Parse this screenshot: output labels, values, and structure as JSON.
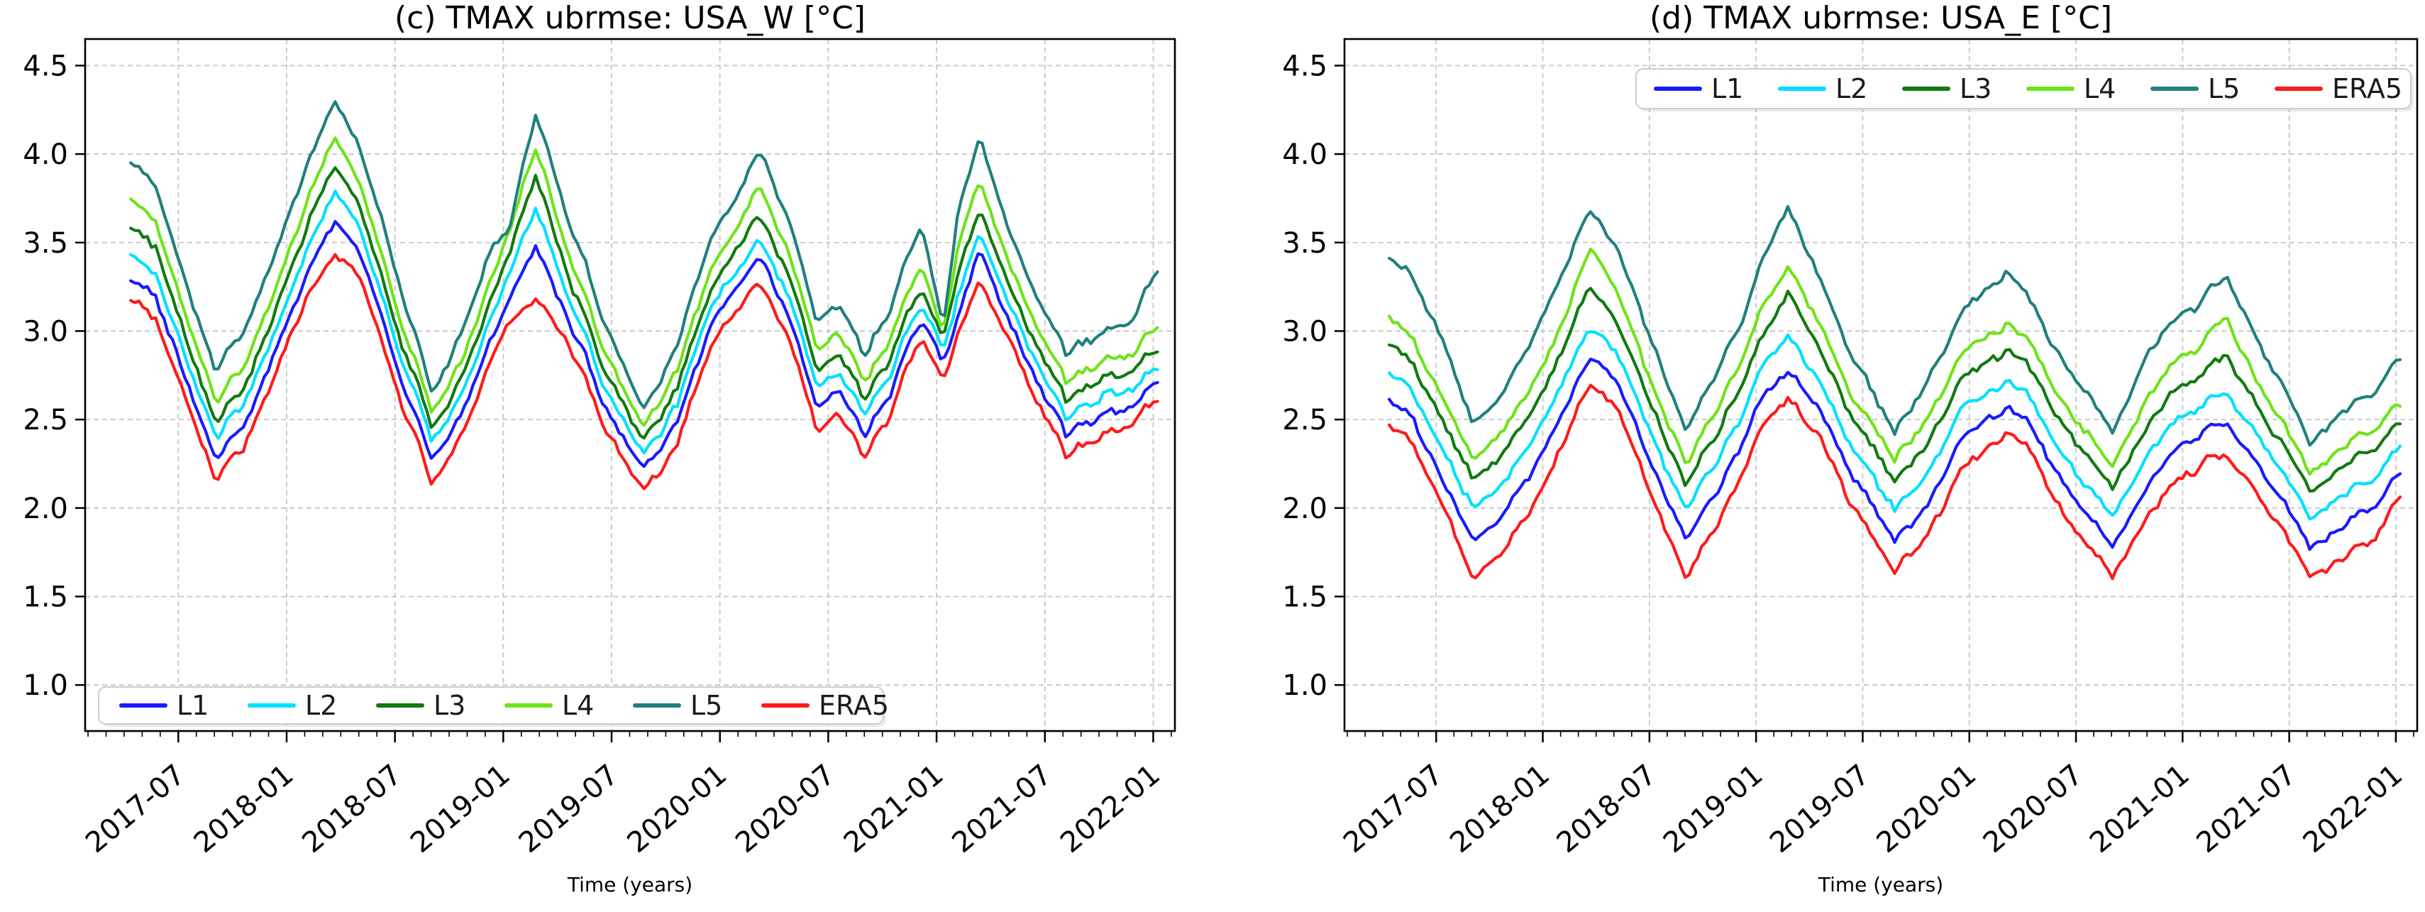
{
  "figure": {
    "background": "#ffffff",
    "axis_color": "#000000",
    "grid_color": "#c6c6c6",
    "tick_label_color": "#000000"
  },
  "chart_data": [
    {
      "id": "c",
      "type": "line",
      "title": "(c) TMAX ubrmse: USA_W [°C]",
      "xlabel": "Time (years)",
      "ylabel": "",
      "legend_position": "bottom-left",
      "grid": true,
      "ylim": [
        0.74,
        4.65
      ],
      "xlim_years": [
        2017.07,
        2022.1
      ],
      "yticks": [
        1.0,
        1.5,
        2.0,
        2.5,
        3.0,
        3.5,
        4.0,
        4.5
      ],
      "ytick_labels": [
        "1.0",
        "1.5",
        "2.0",
        "2.5",
        "3.0",
        "3.5",
        "4.0",
        "4.5"
      ],
      "xticks_years": [
        2017.5,
        2018.0,
        2018.5,
        2019.0,
        2019.5,
        2020.0,
        2020.5,
        2021.0,
        2021.5,
        2022.0
      ],
      "xtick_labels": [
        "2017-07",
        "2018-01",
        "2018-07",
        "2019-01",
        "2019-07",
        "2020-01",
        "2020-07",
        "2021-01",
        "2021-07",
        "2022-01"
      ],
      "noise_amp": 0.042,
      "x_years": [
        2017.28,
        2017.4,
        2017.55,
        2017.67,
        2017.8,
        2017.95,
        2018.1,
        2018.22,
        2018.35,
        2018.5,
        2018.67,
        2018.8,
        2018.95,
        2019.02,
        2019.15,
        2019.3,
        2019.45,
        2019.65,
        2019.8,
        2019.95,
        2020.05,
        2020.18,
        2020.3,
        2020.45,
        2020.55,
        2020.67,
        2020.8,
        2020.93,
        2021.03,
        2021.1,
        2021.2,
        2021.35,
        2021.6,
        2021.75,
        2021.9,
        2022.02
      ],
      "series": [
        {
          "name": "L1",
          "color": "#1a1aff",
          "values": [
            3.33,
            3.17,
            2.67,
            2.3,
            2.47,
            2.9,
            3.33,
            3.62,
            3.42,
            2.83,
            2.26,
            2.5,
            2.97,
            3.17,
            3.48,
            3.08,
            2.62,
            2.22,
            2.47,
            3.0,
            3.2,
            3.4,
            3.17,
            2.55,
            2.67,
            2.4,
            2.7,
            3.08,
            2.83,
            3.1,
            3.42,
            3.0,
            2.4,
            2.52,
            2.58,
            2.72
          ]
        },
        {
          "name": "L2",
          "color": "#00e0ff",
          "values": [
            3.46,
            3.3,
            2.79,
            2.42,
            2.59,
            3.02,
            3.47,
            3.8,
            3.55,
            2.95,
            2.37,
            2.61,
            3.09,
            3.3,
            3.7,
            3.2,
            2.73,
            2.3,
            2.58,
            3.1,
            3.3,
            3.5,
            3.28,
            2.66,
            2.78,
            2.51,
            2.81,
            3.17,
            2.9,
            3.22,
            3.52,
            3.1,
            2.5,
            2.62,
            2.68,
            2.8
          ]
        },
        {
          "name": "L3",
          "color": "#117a11",
          "values": [
            3.62,
            3.45,
            2.9,
            2.5,
            2.68,
            3.13,
            3.6,
            3.95,
            3.67,
            3.05,
            2.44,
            2.7,
            3.2,
            3.42,
            3.88,
            3.32,
            2.83,
            2.38,
            2.67,
            3.2,
            3.42,
            3.64,
            3.4,
            2.76,
            2.88,
            2.6,
            2.9,
            3.26,
            2.96,
            3.35,
            3.66,
            3.2,
            2.6,
            2.72,
            2.78,
            2.9
          ]
        },
        {
          "name": "L4",
          "color": "#6fe319",
          "values": [
            3.77,
            3.6,
            3.02,
            2.62,
            2.8,
            3.26,
            3.74,
            4.1,
            3.8,
            3.16,
            2.53,
            2.8,
            3.31,
            3.55,
            4.03,
            3.45,
            2.94,
            2.46,
            2.77,
            3.31,
            3.53,
            3.8,
            3.53,
            2.87,
            3.0,
            2.7,
            3.01,
            3.38,
            3.0,
            3.5,
            3.82,
            3.32,
            2.7,
            2.82,
            2.88,
            3.03
          ]
        },
        {
          "name": "L5",
          "color": "#20807c",
          "values": [
            3.98,
            3.8,
            3.2,
            2.8,
            3.0,
            3.46,
            3.95,
            4.3,
            4.0,
            3.35,
            2.64,
            2.95,
            3.48,
            3.56,
            4.22,
            3.65,
            3.1,
            2.55,
            2.9,
            3.5,
            3.7,
            4.0,
            3.72,
            3.03,
            3.16,
            2.85,
            3.18,
            3.62,
            3.04,
            3.7,
            4.06,
            3.5,
            2.86,
            2.98,
            3.06,
            3.36
          ]
        },
        {
          "name": "ERA5",
          "color": "#ff1a1a",
          "values": [
            3.22,
            3.05,
            2.55,
            2.18,
            2.35,
            2.78,
            3.2,
            3.44,
            3.28,
            2.7,
            2.13,
            2.38,
            2.85,
            3.05,
            3.18,
            2.95,
            2.5,
            2.1,
            2.35,
            2.88,
            3.08,
            3.26,
            3.05,
            2.42,
            2.55,
            2.27,
            2.58,
            2.98,
            2.73,
            3.0,
            3.25,
            2.9,
            2.28,
            2.4,
            2.48,
            2.62
          ]
        }
      ]
    },
    {
      "id": "d",
      "type": "line",
      "title": "(d) TMAX ubrmse: USA_E [°C]",
      "xlabel": "Time (years)",
      "ylabel": "",
      "legend_position": "top-right",
      "grid": true,
      "ylim": [
        0.74,
        4.65
      ],
      "xlim_years": [
        2017.07,
        2022.1
      ],
      "yticks": [
        1.0,
        1.5,
        2.0,
        2.5,
        3.0,
        3.5,
        4.0,
        4.5
      ],
      "ytick_labels": [
        "1.0",
        "1.5",
        "2.0",
        "2.5",
        "3.0",
        "3.5",
        "4.0",
        "4.5"
      ],
      "xticks_years": [
        2017.5,
        2018.0,
        2018.5,
        2019.0,
        2019.5,
        2020.0,
        2020.5,
        2021.0,
        2021.5,
        2022.0
      ],
      "xtick_labels": [
        "2017-07",
        "2018-01",
        "2018-07",
        "2019-01",
        "2019-07",
        "2020-01",
        "2020-07",
        "2021-01",
        "2021-07",
        "2022-01"
      ],
      "noise_amp": 0.04,
      "x_years": [
        2017.28,
        2017.4,
        2017.55,
        2017.67,
        2017.8,
        2017.95,
        2018.1,
        2018.22,
        2018.35,
        2018.5,
        2018.67,
        2018.8,
        2018.95,
        2019.02,
        2019.15,
        2019.3,
        2019.45,
        2019.65,
        2019.8,
        2019.95,
        2020.05,
        2020.18,
        2020.3,
        2020.45,
        2020.55,
        2020.67,
        2020.8,
        2020.93,
        2021.03,
        2021.1,
        2021.2,
        2021.35,
        2021.6,
        2021.75,
        2021.9,
        2022.02
      ],
      "series": [
        {
          "name": "L1",
          "color": "#1a1aff",
          "values": [
            2.6,
            2.5,
            2.1,
            1.82,
            1.93,
            2.2,
            2.56,
            2.85,
            2.7,
            2.27,
            1.85,
            2.05,
            2.42,
            2.58,
            2.78,
            2.56,
            2.17,
            1.82,
            2.02,
            2.35,
            2.47,
            2.58,
            2.45,
            2.12,
            1.97,
            1.8,
            2.05,
            2.3,
            2.36,
            2.43,
            2.5,
            2.25,
            1.78,
            1.9,
            2.0,
            2.22
          ]
        },
        {
          "name": "L2",
          "color": "#00e0ff",
          "values": [
            2.76,
            2.65,
            2.27,
            2.0,
            2.1,
            2.37,
            2.73,
            3.02,
            2.86,
            2.43,
            2.02,
            2.22,
            2.58,
            2.75,
            2.97,
            2.72,
            2.33,
            2.0,
            2.2,
            2.52,
            2.63,
            2.73,
            2.6,
            2.28,
            2.13,
            1.97,
            2.22,
            2.47,
            2.52,
            2.58,
            2.66,
            2.42,
            1.94,
            2.07,
            2.16,
            2.36
          ]
        },
        {
          "name": "L3",
          "color": "#117a11",
          "values": [
            2.92,
            2.81,
            2.43,
            2.17,
            2.27,
            2.54,
            2.92,
            3.25,
            3.03,
            2.6,
            2.15,
            2.38,
            2.75,
            2.92,
            3.22,
            2.9,
            2.5,
            2.16,
            2.37,
            2.68,
            2.8,
            2.91,
            2.77,
            2.45,
            2.3,
            2.13,
            2.39,
            2.64,
            2.69,
            2.76,
            2.88,
            2.58,
            2.09,
            2.23,
            2.33,
            2.5
          ]
        },
        {
          "name": "L4",
          "color": "#6fe319",
          "values": [
            3.07,
            2.95,
            2.56,
            2.28,
            2.4,
            2.68,
            3.07,
            3.47,
            3.2,
            2.73,
            2.27,
            2.51,
            2.9,
            3.08,
            3.37,
            3.04,
            2.62,
            2.28,
            2.51,
            2.83,
            2.95,
            3.05,
            2.91,
            2.57,
            2.43,
            2.25,
            2.54,
            2.8,
            2.86,
            2.93,
            3.1,
            2.72,
            2.19,
            2.35,
            2.44,
            2.6
          ]
        },
        {
          "name": "L5",
          "color": "#20807c",
          "values": [
            3.4,
            3.3,
            2.88,
            2.48,
            2.62,
            2.95,
            3.35,
            3.68,
            3.45,
            2.97,
            2.46,
            2.72,
            3.12,
            3.35,
            3.7,
            3.3,
            2.85,
            2.43,
            2.72,
            3.06,
            3.2,
            3.35,
            3.15,
            2.8,
            2.65,
            2.45,
            2.78,
            3.05,
            3.1,
            3.18,
            3.33,
            2.95,
            2.37,
            2.55,
            2.65,
            2.86
          ]
        },
        {
          "name": "ERA5",
          "color": "#ff1a1a",
          "values": [
            2.45,
            2.35,
            1.95,
            1.6,
            1.72,
            2.0,
            2.38,
            2.7,
            2.55,
            2.1,
            1.63,
            1.85,
            2.25,
            2.42,
            2.62,
            2.4,
            2.0,
            1.65,
            1.85,
            2.18,
            2.3,
            2.45,
            2.3,
            1.95,
            1.8,
            1.63,
            1.88,
            2.12,
            2.18,
            2.25,
            2.32,
            2.08,
            1.61,
            1.72,
            1.82,
            2.08
          ]
        }
      ]
    }
  ]
}
